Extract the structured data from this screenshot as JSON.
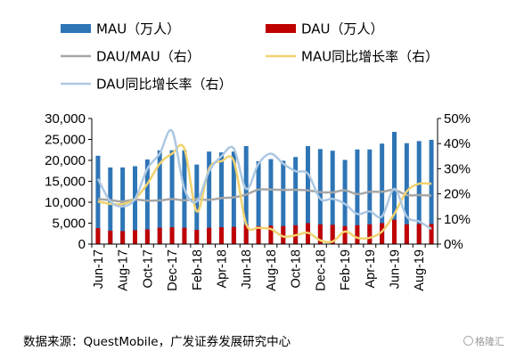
{
  "chart_data": {
    "type": "bar+line",
    "categories": [
      "Jun-17",
      "Jul-17",
      "Aug-17",
      "Sep-17",
      "Oct-17",
      "Nov-17",
      "Dec-17",
      "Jan-18",
      "Feb-18",
      "Mar-18",
      "Apr-18",
      "May-18",
      "Jun-18",
      "Jul-18",
      "Aug-18",
      "Sep-18",
      "Oct-18",
      "Nov-18",
      "Dec-18",
      "Jan-19",
      "Feb-19",
      "Mar-19",
      "Apr-19",
      "May-19",
      "Jun-19",
      "Jul-19",
      "Aug-19",
      "Sep-19"
    ],
    "x_tick_labels": [
      "Jun-17",
      "Aug-17",
      "Oct-17",
      "Dec-17",
      "Feb-18",
      "Apr-18",
      "Jun-18",
      "Aug-18",
      "Oct-18",
      "Dec-18",
      "Feb-19",
      "Apr-19",
      "Jun-19",
      "Aug-19"
    ],
    "bar_series": [
      {
        "name": "MAU（万人）",
        "color": "#2e75b6",
        "values": [
          21100,
          18300,
          18300,
          18600,
          20200,
          22400,
          22400,
          22400,
          19000,
          22100,
          21900,
          22100,
          23400,
          19800,
          20300,
          19900,
          20800,
          23400,
          22700,
          22300,
          20100,
          22600,
          22600,
          24000,
          26800,
          24100,
          24600,
          24900
        ]
      },
      {
        "name": "DAU（万人）",
        "color": "#c00000",
        "values": [
          3800,
          3200,
          3100,
          3300,
          3500,
          3900,
          4000,
          3900,
          3400,
          3900,
          4000,
          4100,
          4600,
          4300,
          4400,
          4300,
          4500,
          5000,
          4700,
          4600,
          4300,
          4500,
          4700,
          5000,
          5800,
          4700,
          4800,
          4800
        ]
      }
    ],
    "line_series": [
      {
        "name": "DAU/MAU（右）",
        "color": "#a6a6a6",
        "values": [
          18.0,
          17.5,
          17.0,
          17.7,
          17.3,
          17.4,
          17.9,
          17.4,
          17.9,
          17.6,
          18.3,
          18.6,
          19.7,
          21.7,
          21.7,
          21.6,
          21.6,
          21.4,
          20.7,
          20.6,
          21.4,
          19.9,
          20.8,
          20.8,
          21.6,
          19.5,
          19.5,
          19.3
        ]
      },
      {
        "name": "MAU同比增长率（右）",
        "color": "#f0d26e",
        "values": [
          17.0,
          16.0,
          16.0,
          18.0,
          24.0,
          32.0,
          36.0,
          38.0,
          13.0,
          30.0,
          33.0,
          33.0,
          8.0,
          6.5,
          6.0,
          3.0,
          3.5,
          4.5,
          1.5,
          1.0,
          5.0,
          2.5,
          2.5,
          5.0,
          12.0,
          21.0,
          24.0,
          24.0
        ]
      },
      {
        "name": "DAU同比增长率（右）",
        "color": "#adc8e2",
        "values": [
          26.0,
          17.0,
          15.0,
          18.0,
          30.0,
          36.0,
          45.0,
          22.0,
          17.0,
          29.0,
          35.0,
          38.0,
          22.0,
          32.0,
          36.0,
          32.0,
          29.0,
          28.0,
          18.0,
          18.0,
          16.0,
          12.0,
          13.0,
          11.0,
          22.0,
          11.0,
          9.0,
          6.0
        ]
      }
    ],
    "y_left": {
      "min": 0,
      "max": 30000,
      "ticks": [
        "0",
        "5,000",
        "10,000",
        "15,000",
        "20,000",
        "25,000",
        "30,000"
      ]
    },
    "y_right": {
      "min": 0,
      "max": 50,
      "ticks": [
        "0%",
        "10%",
        "20%",
        "30%",
        "40%",
        "50%"
      ]
    },
    "legend": [
      {
        "label": "MAU（万人）",
        "kind": "bar",
        "color": "#2e75b6"
      },
      {
        "label": "DAU（万人）",
        "kind": "bar",
        "color": "#c00000"
      },
      {
        "label": "DAU/MAU（右）",
        "kind": "line",
        "color": "#a6a6a6"
      },
      {
        "label": "MAU同比增长率（右）",
        "kind": "line",
        "color": "#f0d26e"
      },
      {
        "label": "DAU同比增长率（右）",
        "kind": "line",
        "color": "#adc8e2"
      }
    ],
    "legend_placement": "top",
    "grid": false
  },
  "source_note": "数据来源：QuestMobile，广发证券发展研究中心",
  "watermark": "格隆汇"
}
